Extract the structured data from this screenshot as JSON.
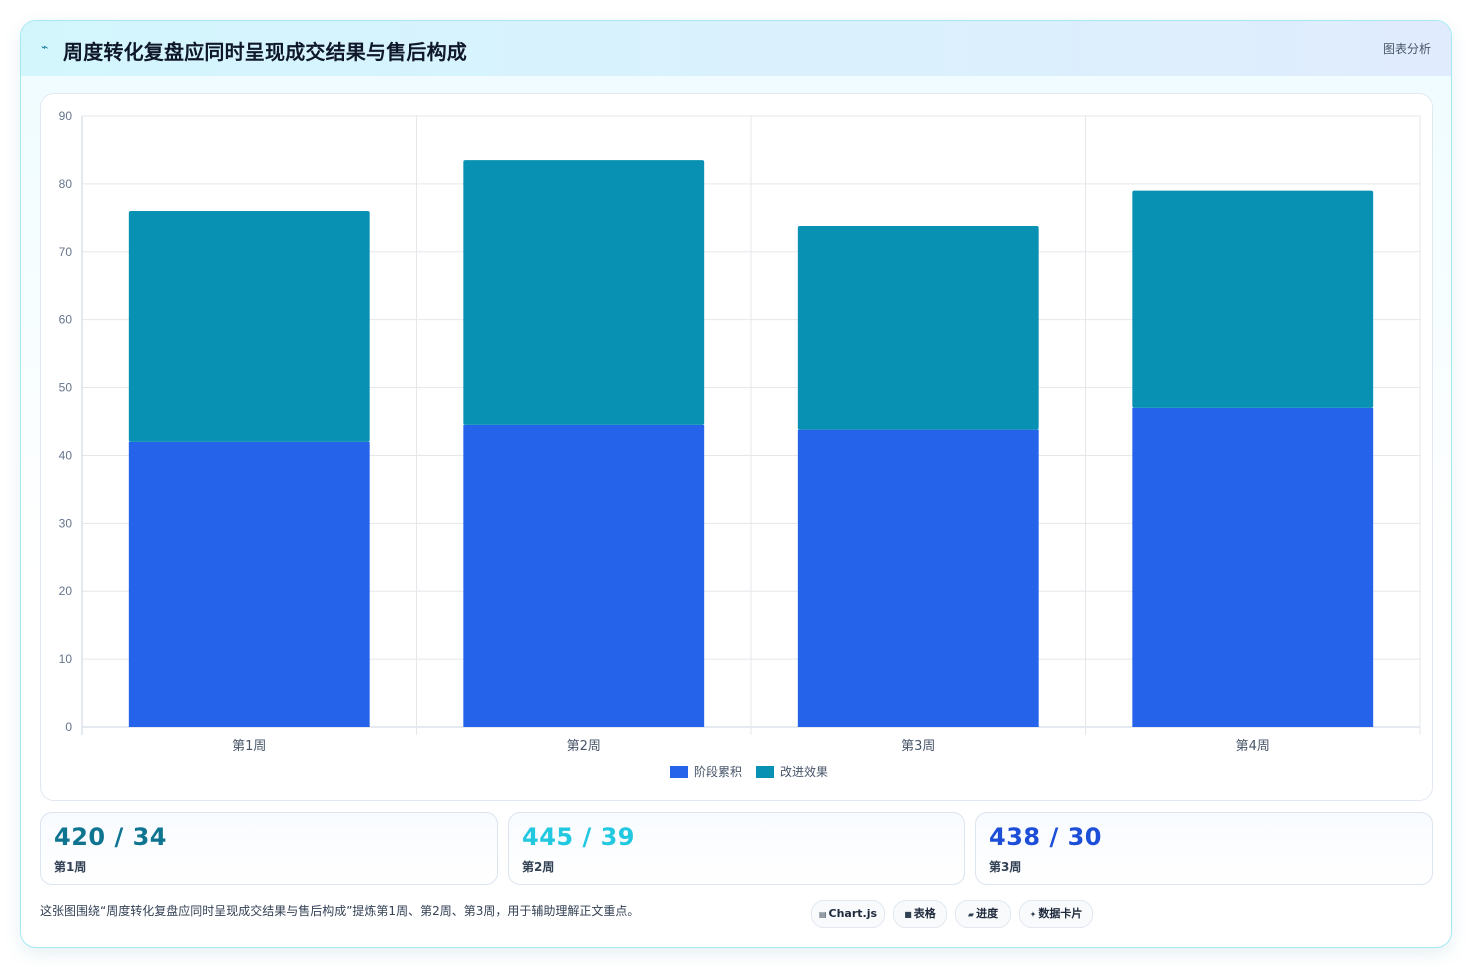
{
  "header": {
    "icon": "trend-icon",
    "title": "周度转化复盘应同时呈现成交结果与售后构成",
    "right_label": "图表分析"
  },
  "chart_data": {
    "type": "bar",
    "stacked": true,
    "categories": [
      "第1周",
      "第2周",
      "第3周",
      "第4周"
    ],
    "series": [
      {
        "name": "阶段累积",
        "color": "#2563eb",
        "values": [
          42,
          44.5,
          43.8,
          47
        ]
      },
      {
        "name": "改进效果",
        "color": "#0891b2",
        "values": [
          34,
          39,
          30,
          32
        ]
      }
    ],
    "ylim": [
      0,
      90
    ],
    "yticks": [
      0,
      10,
      20,
      30,
      40,
      50,
      60,
      70,
      80,
      90
    ],
    "grid": true,
    "legend": "bottom"
  },
  "stats": [
    {
      "value": "420 / 34",
      "label": "第1周",
      "color": "#0e7490"
    },
    {
      "value": "445 / 39",
      "label": "第2周",
      "color": "#22c8e0"
    },
    {
      "value": "438 / 30",
      "label": "第3周",
      "color": "#1d4ed8"
    }
  ],
  "footnote": "这张图围绕“周度转化复盘应同时呈现成交结果与售后构成”提炼第1周、第2周、第3周，用于辅助理解正文重点。",
  "tags": [
    {
      "icon": "chart-icon",
      "glyph": "▤",
      "label": "Chart.js"
    },
    {
      "icon": "table-icon",
      "glyph": "■",
      "label": "表格"
    },
    {
      "icon": "progress-icon",
      "glyph": "▰",
      "label": "进度"
    },
    {
      "icon": "sparkle-icon",
      "glyph": "✦",
      "label": "数据卡片"
    }
  ]
}
